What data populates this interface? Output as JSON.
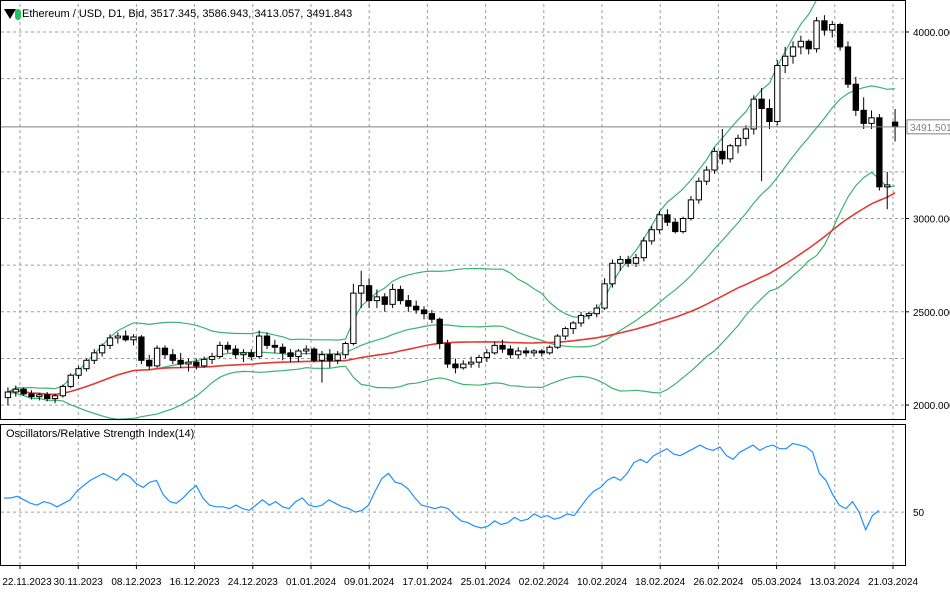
{
  "header": {
    "symbol": "Ethereum / USD",
    "timeframe": "D1",
    "price_type": "Bid",
    "ohlc_text": "Ethereum / USD, D1, Bid, 3517.345, 3586.943, 3413.057, 3491.843",
    "status_color": "#22c55e"
  },
  "rsi_title": "Oscillators/Relative Strength Index(14)",
  "chart_data": [
    {
      "type": "candlestick",
      "title": "Ethereum / USD, D1, Bid, 3517.345, 3586.943, 3413.057, 3491.843",
      "ylim": [
        1920,
        4150
      ],
      "y_ticks": [
        {
          "value": 2000,
          "label": "2000.000"
        },
        {
          "value": 2500,
          "label": "2500.000"
        },
        {
          "value": 3000,
          "label": "3000.000"
        },
        {
          "value": 4000,
          "label": "4000.000"
        }
      ],
      "current_price": {
        "value": 3491.5,
        "label": "3491.501"
      },
      "x_labels": [
        "22.11.2023",
        "30.11.2023",
        "08.12.2023",
        "16.12.2023",
        "24.12.2023",
        "01.01.2024",
        "09.01.2024",
        "17.01.2024",
        "25.01.2024",
        "02.02.2024",
        "10.02.2024",
        "18.02.2024",
        "26.02.2024",
        "05.03.2024",
        "13.03.2024",
        "21.03.2024"
      ],
      "grid": true,
      "candles": [
        [
          2040,
          2095,
          2000,
          2070
        ],
        [
          2070,
          2105,
          2045,
          2085
        ],
        [
          2085,
          2095,
          2050,
          2060
        ],
        [
          2060,
          2080,
          2030,
          2045
        ],
        [
          2045,
          2065,
          2025,
          2055
        ],
        [
          2055,
          2070,
          2020,
          2035
        ],
        [
          2035,
          2060,
          2010,
          2050
        ],
        [
          2050,
          2110,
          2040,
          2100
        ],
        [
          2100,
          2170,
          2090,
          2160
        ],
        [
          2160,
          2210,
          2140,
          2195
        ],
        [
          2195,
          2250,
          2180,
          2240
        ],
        [
          2240,
          2300,
          2220,
          2280
        ],
        [
          2280,
          2330,
          2260,
          2320
        ],
        [
          2320,
          2380,
          2300,
          2360
        ],
        [
          2360,
          2390,
          2330,
          2370
        ],
        [
          2370,
          2400,
          2340,
          2350
        ],
        [
          2350,
          2380,
          2320,
          2365
        ],
        [
          2365,
          2375,
          2220,
          2240
        ],
        [
          2240,
          2270,
          2190,
          2210
        ],
        [
          2210,
          2320,
          2200,
          2305
        ],
        [
          2305,
          2320,
          2250,
          2270
        ],
        [
          2270,
          2300,
          2220,
          2240
        ],
        [
          2240,
          2280,
          2200,
          2220
        ],
        [
          2220,
          2250,
          2180,
          2230
        ],
        [
          2230,
          2250,
          2190,
          2210
        ],
        [
          2210,
          2260,
          2200,
          2245
        ],
        [
          2245,
          2280,
          2220,
          2260
        ],
        [
          2260,
          2340,
          2250,
          2320
        ],
        [
          2320,
          2340,
          2280,
          2300
        ],
        [
          2300,
          2320,
          2250,
          2270
        ],
        [
          2270,
          2300,
          2230,
          2280
        ],
        [
          2280,
          2300,
          2240,
          2260
        ],
        [
          2260,
          2400,
          2250,
          2370
        ],
        [
          2370,
          2390,
          2300,
          2320
        ],
        [
          2320,
          2350,
          2280,
          2310
        ],
        [
          2310,
          2330,
          2240,
          2280
        ],
        [
          2280,
          2300,
          2230,
          2260
        ],
        [
          2260,
          2300,
          2230,
          2290
        ],
        [
          2290,
          2320,
          2270,
          2300
        ],
        [
          2300,
          2310,
          2230,
          2240
        ],
        [
          2240,
          2290,
          2120,
          2270
        ],
        [
          2270,
          2300,
          2200,
          2240
        ],
        [
          2240,
          2290,
          2220,
          2270
        ],
        [
          2270,
          2340,
          2250,
          2330
        ],
        [
          2330,
          2650,
          2320,
          2600
        ],
        [
          2600,
          2720,
          2520,
          2640
        ],
        [
          2640,
          2680,
          2520,
          2560
        ],
        [
          2560,
          2620,
          2520,
          2580
        ],
        [
          2580,
          2600,
          2500,
          2540
        ],
        [
          2540,
          2650,
          2520,
          2620
        ],
        [
          2620,
          2640,
          2540,
          2560
        ],
        [
          2560,
          2590,
          2500,
          2530
        ],
        [
          2530,
          2560,
          2490,
          2510
        ],
        [
          2510,
          2530,
          2460,
          2490
        ],
        [
          2490,
          2510,
          2440,
          2460
        ],
        [
          2460,
          2470,
          2300,
          2330
        ],
        [
          2330,
          2350,
          2200,
          2220
        ],
        [
          2220,
          2250,
          2170,
          2200
        ],
        [
          2200,
          2240,
          2190,
          2220
        ],
        [
          2220,
          2260,
          2200,
          2230
        ],
        [
          2230,
          2270,
          2200,
          2255
        ],
        [
          2255,
          2300,
          2230,
          2280
        ],
        [
          2280,
          2340,
          2270,
          2320
        ],
        [
          2320,
          2350,
          2280,
          2300
        ],
        [
          2300,
          2320,
          2250,
          2270
        ],
        [
          2270,
          2310,
          2250,
          2290
        ],
        [
          2290,
          2310,
          2260,
          2280
        ],
        [
          2280,
          2300,
          2260,
          2290
        ],
        [
          2290,
          2300,
          2260,
          2280
        ],
        [
          2280,
          2320,
          2270,
          2310
        ],
        [
          2310,
          2380,
          2300,
          2370
        ],
        [
          2370,
          2420,
          2350,
          2410
        ],
        [
          2410,
          2450,
          2380,
          2440
        ],
        [
          2440,
          2500,
          2420,
          2480
        ],
        [
          2480,
          2500,
          2460,
          2490
        ],
        [
          2490,
          2540,
          2470,
          2520
        ],
        [
          2520,
          2680,
          2510,
          2650
        ],
        [
          2650,
          2780,
          2630,
          2760
        ],
        [
          2760,
          2800,
          2720,
          2780
        ],
        [
          2780,
          2800,
          2740,
          2760
        ],
        [
          2760,
          2810,
          2740,
          2790
        ],
        [
          2790,
          2900,
          2770,
          2880
        ],
        [
          2880,
          2960,
          2860,
          2940
        ],
        [
          2940,
          3040,
          2920,
          3020
        ],
        [
          3020,
          3050,
          2960,
          2980
        ],
        [
          2980,
          3000,
          2920,
          2930
        ],
        [
          2930,
          3010,
          2920,
          3000
        ],
        [
          3000,
          3120,
          2990,
          3100
        ],
        [
          3100,
          3220,
          3080,
          3200
        ],
        [
          3200,
          3280,
          3180,
          3260
        ],
        [
          3260,
          3380,
          3240,
          3360
        ],
        [
          3360,
          3480,
          3290,
          3320
        ],
        [
          3320,
          3400,
          3300,
          3390
        ],
        [
          3390,
          3450,
          3350,
          3430
        ],
        [
          3430,
          3500,
          3390,
          3480
        ],
        [
          3480,
          3660,
          3450,
          3640
        ],
        [
          3640,
          3700,
          3200,
          3590
        ],
        [
          3590,
          3640,
          3480,
          3520
        ],
        [
          3520,
          3850,
          3500,
          3820
        ],
        [
          3820,
          3920,
          3780,
          3870
        ],
        [
          3870,
          3950,
          3830,
          3920
        ],
        [
          3920,
          3980,
          3880,
          3950
        ],
        [
          3950,
          3960,
          3880,
          3910
        ],
        [
          3910,
          4080,
          3890,
          4060
        ],
        [
          4060,
          4090,
          3980,
          4010
        ],
        [
          4010,
          4060,
          3970,
          4040
        ],
        [
          4040,
          4050,
          3900,
          3920
        ],
        [
          3920,
          3950,
          3700,
          3720
        ],
        [
          3720,
          3760,
          3550,
          3580
        ],
        [
          3580,
          3650,
          3480,
          3510
        ],
        [
          3510,
          3580,
          3480,
          3540
        ],
        [
          3540,
          3560,
          3150,
          3170
        ],
        [
          3170,
          3250,
          3050,
          3180
        ],
        [
          3517,
          3587,
          3413,
          3492
        ]
      ]
    },
    {
      "type": "line",
      "title": "Oscillators/Relative Strength Index(14)",
      "ylim": [
        20,
        100
      ],
      "y_ticks": [
        {
          "value": 50,
          "label": "50"
        }
      ],
      "series": [
        {
          "values": [
            58,
            58,
            59,
            57,
            55,
            54,
            56,
            55,
            53,
            55,
            57,
            62,
            65,
            68,
            70,
            72,
            70,
            68,
            72,
            70,
            66,
            64,
            67,
            68,
            60,
            56,
            55,
            58,
            62,
            65,
            58,
            54,
            53,
            53,
            52,
            54,
            52,
            51,
            54,
            57,
            54,
            56,
            53,
            52,
            56,
            58,
            54,
            53,
            54,
            57,
            55,
            53,
            52,
            50,
            51,
            54,
            62,
            69,
            72,
            67,
            66,
            63,
            58,
            54,
            53,
            52,
            53,
            52,
            48,
            45,
            44,
            42,
            41,
            42,
            45,
            43,
            44,
            47,
            45,
            46,
            49,
            47,
            48,
            46,
            47,
            49,
            48,
            53,
            58,
            62,
            64,
            68,
            70,
            68,
            72,
            78,
            80,
            78,
            82,
            84,
            86,
            83,
            82,
            84,
            86,
            88,
            86,
            85,
            87,
            82,
            80,
            84,
            86,
            88,
            85,
            87,
            88,
            86,
            86,
            89,
            88,
            87,
            84,
            72,
            68,
            60,
            54,
            52,
            56,
            50,
            40,
            48,
            51
          ]
        }
      ]
    }
  ]
}
